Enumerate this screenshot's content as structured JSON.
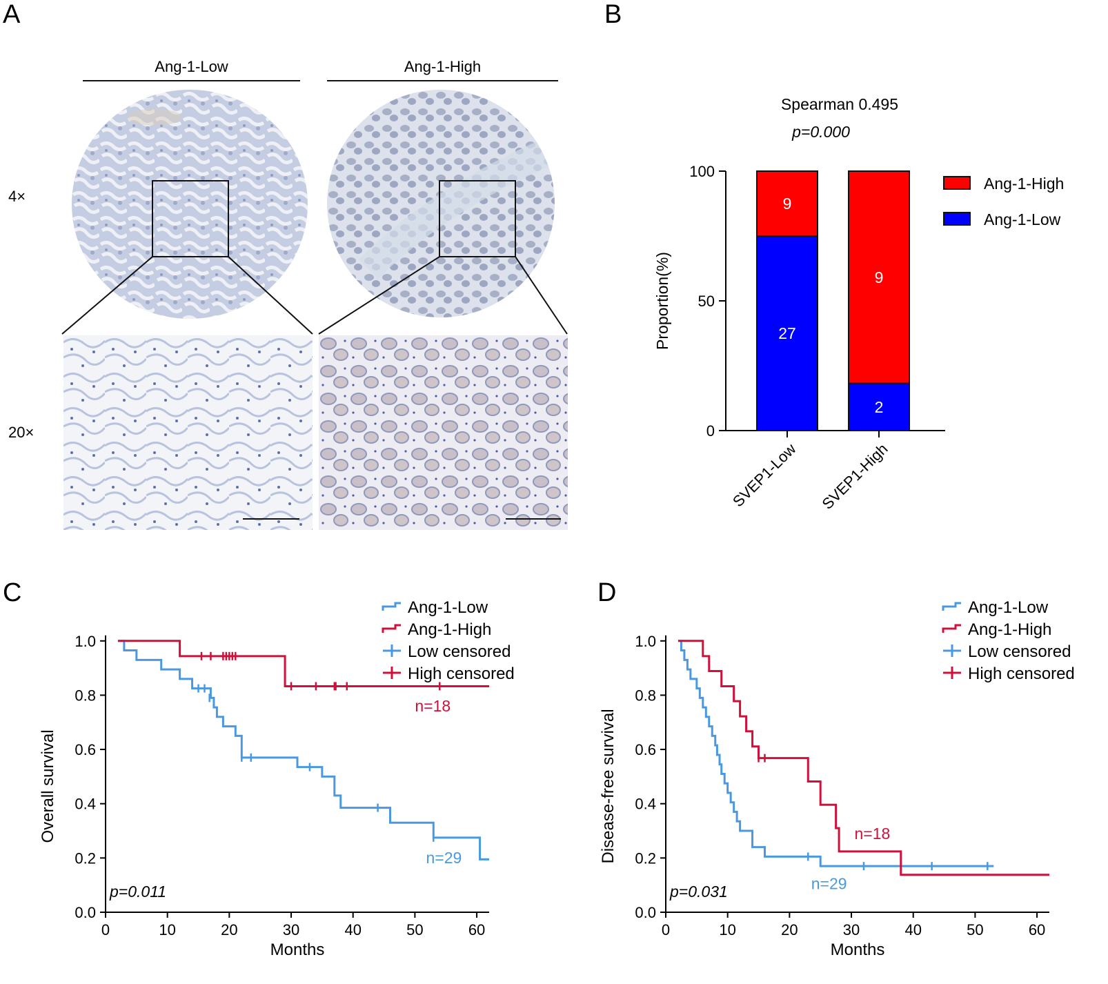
{
  "panels": {
    "A": {
      "letter": "A",
      "groups": [
        "Ang-1-Low",
        "Ang-1-High"
      ],
      "magnifications": [
        "4×",
        "20×"
      ],
      "colors": {
        "low_tissue": "#c9d1e4",
        "low_bg": "#eef0f5",
        "high_tissue": "#b9c0d6",
        "high_bg": "#dde1ec",
        "stain_brown": "#c8a98a"
      }
    },
    "B": {
      "letter": "B"
    },
    "C": {
      "letter": "C"
    },
    "D": {
      "letter": "D"
    }
  },
  "chart_data": [
    {
      "id": "B",
      "type": "bar",
      "stacked": true,
      "title": "Spearman 0.495",
      "subtitle": "p=0.000",
      "ylabel": "Proportion(%)",
      "xlabel": "",
      "ylim": [
        0,
        100
      ],
      "yticks": [
        0,
        50,
        100
      ],
      "categories": [
        "SVEP1-Low",
        "SVEP1-High"
      ],
      "series": [
        {
          "name": "Ang-1-Low",
          "color": "#0000ff",
          "values": [
            75,
            18.2
          ],
          "counts": [
            "27",
            "2"
          ]
        },
        {
          "name": "Ang-1-High",
          "color": "#ff0000",
          "values": [
            25,
            81.8
          ],
          "counts": [
            "9",
            "9"
          ]
        }
      ],
      "legend": [
        "Ang-1-High",
        "Ang-1-Low"
      ],
      "legend_position": "right"
    },
    {
      "id": "C",
      "type": "line",
      "step": true,
      "xlabel": "Months",
      "ylabel": "Overall survival",
      "xlim": [
        0,
        62
      ],
      "ylim": [
        0,
        1.03
      ],
      "xticks": [
        0,
        10,
        20,
        30,
        40,
        50,
        60
      ],
      "yticks": [
        "0.0",
        "0.2",
        "0.4",
        "0.6",
        "0.8",
        "1.0"
      ],
      "pvalue": "p=0.011",
      "legend": [
        "Ang-1-Low",
        "Ang-1-High",
        "Low censored",
        "High censored"
      ],
      "legend_position": "top-right",
      "series": [
        {
          "name": "Ang-1-Low",
          "color": "#4a99e0",
          "n_label": "n=29",
          "steps": [
            [
              2,
              1.0
            ],
            [
              3,
              0.965
            ],
            [
              5,
              0.93
            ],
            [
              9,
              0.895
            ],
            [
              12,
              0.86
            ],
            [
              14,
              0.825
            ],
            [
              17,
              0.79
            ],
            [
              17.5,
              0.755
            ],
            [
              18,
              0.72
            ],
            [
              19,
              0.685
            ],
            [
              21,
              0.65
            ],
            [
              22,
              0.57
            ],
            [
              31,
              0.535
            ],
            [
              35,
              0.5
            ],
            [
              37,
              0.43
            ],
            [
              38,
              0.385
            ],
            [
              46,
              0.33
            ],
            [
              53,
              0.275
            ],
            [
              60.5,
              0.195
            ],
            [
              62,
              0.195
            ]
          ],
          "censored": [
            [
              15,
              0.825
            ],
            [
              16,
              0.825
            ],
            [
              16.8,
              0.79
            ],
            [
              22,
              0.57
            ],
            [
              23.5,
              0.57
            ],
            [
              33,
              0.535
            ],
            [
              44,
              0.385
            ],
            [
              53,
              0.275
            ]
          ]
        },
        {
          "name": "Ang-1-High",
          "color": "#d0103a",
          "n_label": "n=18",
          "steps": [
            [
              2,
              1.0
            ],
            [
              12,
              0.944
            ],
            [
              29,
              0.833
            ],
            [
              62,
              0.833
            ]
          ],
          "censored": [
            [
              15.5,
              0.944
            ],
            [
              17,
              0.944
            ],
            [
              19,
              0.944
            ],
            [
              19.5,
              0.944
            ],
            [
              20,
              0.944
            ],
            [
              20.5,
              0.944
            ],
            [
              21,
              0.944
            ],
            [
              30,
              0.833
            ],
            [
              34,
              0.833
            ],
            [
              37,
              0.833
            ],
            [
              37.2,
              0.833
            ],
            [
              39,
              0.833
            ],
            [
              54,
              0.833
            ]
          ]
        }
      ]
    },
    {
      "id": "D",
      "type": "line",
      "step": true,
      "xlabel": "Months",
      "ylabel": "Disease-free survival",
      "xlim": [
        0,
        62
      ],
      "ylim": [
        0,
        1.03
      ],
      "xticks": [
        0,
        10,
        20,
        30,
        40,
        50,
        60
      ],
      "yticks": [
        "0.0",
        "0.2",
        "0.4",
        "0.6",
        "0.8",
        "1.0"
      ],
      "pvalue": "p=0.031",
      "legend": [
        "Ang-1-Low",
        "Ang-1-High",
        "Low censored",
        "High censored"
      ],
      "legend_position": "top-right",
      "series": [
        {
          "name": "Ang-1-Low",
          "color": "#4a99e0",
          "n_label": "n=29",
          "steps": [
            [
              2,
              1.0
            ],
            [
              2.5,
              0.965
            ],
            [
              3,
              0.93
            ],
            [
              3.5,
              0.895
            ],
            [
              4,
              0.86
            ],
            [
              5,
              0.825
            ],
            [
              5.5,
              0.79
            ],
            [
              6,
              0.755
            ],
            [
              6.5,
              0.72
            ],
            [
              7,
              0.685
            ],
            [
              7.5,
              0.65
            ],
            [
              8,
              0.615
            ],
            [
              8.3,
              0.58
            ],
            [
              8.7,
              0.545
            ],
            [
              9,
              0.51
            ],
            [
              9.5,
              0.475
            ],
            [
              10,
              0.44
            ],
            [
              10.5,
              0.405
            ],
            [
              11,
              0.37
            ],
            [
              11.5,
              0.335
            ],
            [
              12,
              0.3
            ],
            [
              14,
              0.24
            ],
            [
              16,
              0.205
            ],
            [
              25,
              0.17
            ],
            [
              53,
              0.17
            ]
          ],
          "censored": [
            [
              23,
              0.205
            ],
            [
              32,
              0.17
            ],
            [
              43,
              0.17
            ],
            [
              52,
              0.17
            ]
          ]
        },
        {
          "name": "Ang-1-High",
          "color": "#d0103a",
          "n_label": "n=18",
          "steps": [
            [
              2,
              1.0
            ],
            [
              6,
              0.944
            ],
            [
              7,
              0.889
            ],
            [
              9,
              0.833
            ],
            [
              11,
              0.778
            ],
            [
              12,
              0.722
            ],
            [
              13,
              0.667
            ],
            [
              14,
              0.611
            ],
            [
              15,
              0.568
            ],
            [
              23,
              0.482
            ],
            [
              25,
              0.396
            ],
            [
              27.5,
              0.31
            ],
            [
              28,
              0.224
            ],
            [
              38,
              0.138
            ],
            [
              62,
              0.138
            ]
          ],
          "censored": [
            [
              15,
              0.568
            ],
            [
              16,
              0.568
            ]
          ]
        }
      ]
    }
  ]
}
